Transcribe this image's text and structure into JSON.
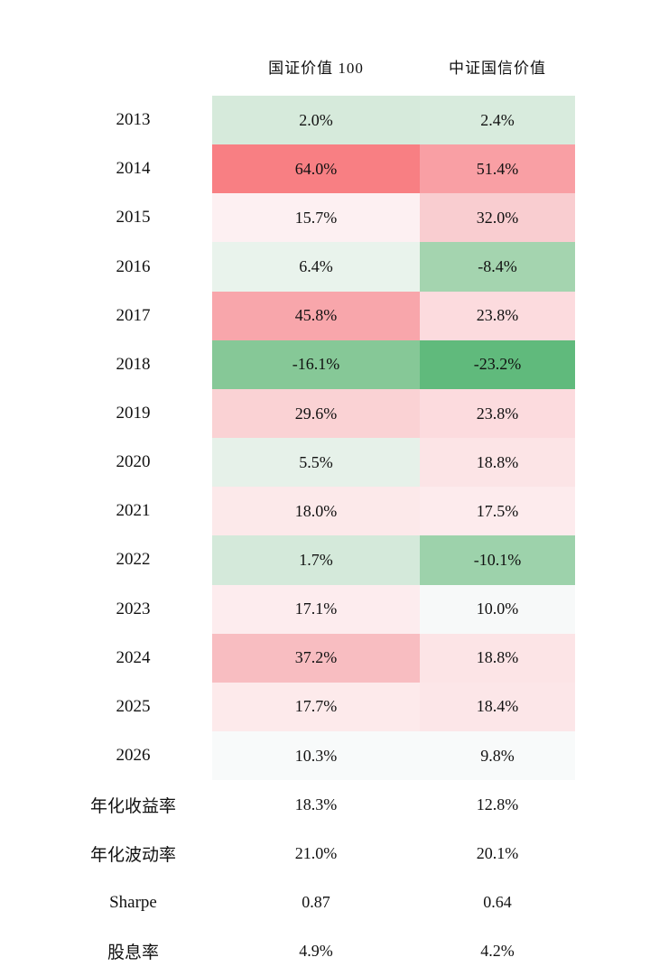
{
  "table": {
    "columns": [
      {
        "label": "国证价值 100"
      },
      {
        "label": "中证国信价值"
      }
    ],
    "rows": [
      {
        "label": "2013",
        "values": [
          "2.0%",
          "2.4%"
        ],
        "colors": [
          "#d6eadb",
          "#d8ebdd"
        ]
      },
      {
        "label": "2014",
        "values": [
          "64.0%",
          "51.4%"
        ],
        "colors": [
          "#f87f83",
          "#f99fa4"
        ]
      },
      {
        "label": "2015",
        "values": [
          "15.7%",
          "32.0%"
        ],
        "colors": [
          "#fdf0f2",
          "#f9cdd0"
        ]
      },
      {
        "label": "2016",
        "values": [
          "6.4%",
          "-8.4%"
        ],
        "colors": [
          "#e9f3ec",
          "#a4d4af"
        ]
      },
      {
        "label": "2017",
        "values": [
          "45.8%",
          "23.8%"
        ],
        "colors": [
          "#f8a6ab",
          "#fcdbde"
        ]
      },
      {
        "label": "2018",
        "values": [
          "-16.1%",
          "-23.2%"
        ],
        "colors": [
          "#86c897",
          "#60ba7c"
        ]
      },
      {
        "label": "2019",
        "values": [
          "29.6%",
          "23.8%"
        ],
        "colors": [
          "#fad2d4",
          "#fcdbde"
        ]
      },
      {
        "label": "2020",
        "values": [
          "5.5%",
          "18.8%"
        ],
        "colors": [
          "#e6f1e9",
          "#fce4e6"
        ]
      },
      {
        "label": "2021",
        "values": [
          "18.0%",
          "17.5%"
        ],
        "colors": [
          "#fce9ea",
          "#fdebed"
        ]
      },
      {
        "label": "2022",
        "values": [
          "1.7%",
          "-10.1%"
        ],
        "colors": [
          "#d4e9da",
          "#9dd2ab"
        ]
      },
      {
        "label": "2023",
        "values": [
          "17.1%",
          "10.0%"
        ],
        "colors": [
          "#fdecee",
          "#f7f9f9"
        ]
      },
      {
        "label": "2024",
        "values": [
          "37.2%",
          "18.8%"
        ],
        "colors": [
          "#f8bdc1",
          "#fce4e6"
        ]
      },
      {
        "label": "2025",
        "values": [
          "17.7%",
          "18.4%"
        ],
        "colors": [
          "#fdeaeb",
          "#fce6e8"
        ]
      },
      {
        "label": "2026",
        "values": [
          "10.3%",
          "9.8%"
        ],
        "colors": [
          "#f8fafa",
          "#f8fafa"
        ]
      },
      {
        "label": "年化收益率",
        "values": [
          "18.3%",
          "12.8%"
        ],
        "colors": [
          "transparent",
          "transparent"
        ]
      },
      {
        "label": "年化波动率",
        "values": [
          "21.0%",
          "20.1%"
        ],
        "colors": [
          "transparent",
          "transparent"
        ]
      },
      {
        "label": "Sharpe",
        "values": [
          "0.87",
          "0.64"
        ],
        "colors": [
          "transparent",
          "transparent"
        ]
      },
      {
        "label": "股息率",
        "values": [
          "4.9%",
          "4.2%"
        ],
        "colors": [
          "transparent",
          "transparent"
        ]
      }
    ]
  },
  "chart_data": {
    "type": "heatmap",
    "title": "",
    "columns": [
      "国证价值 100",
      "中证国信价值"
    ],
    "rows": [
      "2013",
      "2014",
      "2015",
      "2016",
      "2017",
      "2018",
      "2019",
      "2020",
      "2021",
      "2022",
      "2023",
      "2024",
      "2025",
      "2026",
      "年化收益率",
      "年化波动率",
      "Sharpe",
      "股息率"
    ],
    "values": [
      [
        2.0,
        2.4
      ],
      [
        64.0,
        51.4
      ],
      [
        15.7,
        32.0
      ],
      [
        6.4,
        -8.4
      ],
      [
        45.8,
        23.8
      ],
      [
        -16.1,
        -23.2
      ],
      [
        29.6,
        23.8
      ],
      [
        5.5,
        18.8
      ],
      [
        18.0,
        17.5
      ],
      [
        1.7,
        -10.1
      ],
      [
        17.1,
        10.0
      ],
      [
        37.2,
        18.8
      ],
      [
        17.7,
        18.4
      ],
      [
        10.3,
        9.8
      ],
      [
        18.3,
        12.8
      ],
      [
        21.0,
        20.1
      ],
      [
        0.87,
        0.64
      ],
      [
        4.9,
        4.2
      ]
    ],
    "colormap": {
      "description": "diverging: red for high returns, white near ~10%, green for low/negative; last four rows unshaded",
      "max_red": "#f87f83",
      "center_white": "#f8fafa",
      "max_green": "#60ba7c"
    },
    "heatmap_rows": 14,
    "legend_position": "none",
    "grid": false
  }
}
